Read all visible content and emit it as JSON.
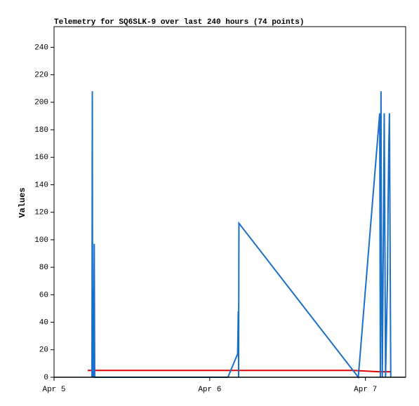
{
  "chart_data": {
    "type": "line",
    "title": "Telemetry for SQ6SLK-9 over last 240 hours (74 points)",
    "y_label": "Values",
    "xlim": [
      0,
      54.2
    ],
    "xticks": [
      {
        "value": 0,
        "label": "Apr 5"
      },
      {
        "value": 24,
        "label": "Apr 6"
      },
      {
        "value": 48,
        "label": "Apr 7"
      }
    ],
    "ylim": [
      0,
      255
    ],
    "yticks": [
      0,
      20,
      40,
      60,
      80,
      100,
      120,
      140,
      160,
      180,
      200,
      220,
      240
    ],
    "series": [
      {
        "color": "#e00000",
        "x": [
          5.2,
          46,
          50,
          51.9
        ],
        "values": [
          5,
          5,
          4,
          4
        ]
      },
      {
        "color": "#1a6fc8",
        "x": [
          5.84,
          5.9,
          5.95,
          6.05,
          6.1,
          6.2,
          6.27,
          26.8,
          28.3,
          28.4,
          28.45,
          28.5,
          46.9,
          50.2,
          50.3,
          50.4,
          50.45,
          50.6,
          50.9,
          51.0,
          51.1,
          51.4,
          51.5,
          51.6,
          51.7,
          51.8,
          51.9
        ],
        "values": [
          0,
          208,
          0,
          64,
          0,
          97,
          0,
          0,
          17,
          48,
          0,
          112,
          0,
          192,
          0,
          208,
          104,
          0,
          192,
          96,
          0,
          72,
          128,
          168,
          192,
          96,
          0
        ]
      }
    ]
  }
}
